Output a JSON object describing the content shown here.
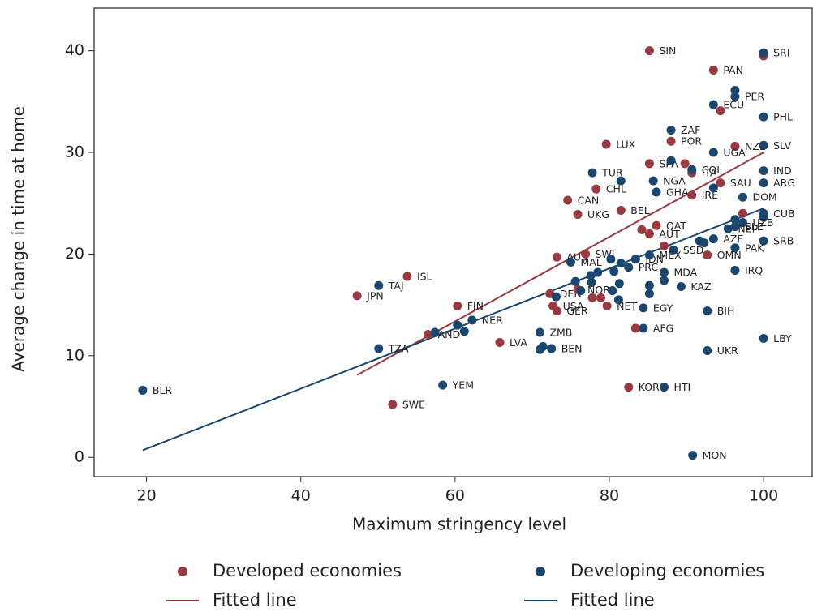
{
  "chart_data": {
    "type": "scatter",
    "xlabel": "Maximum stringency level",
    "ylabel": "Average change in time at home",
    "xlim": [
      13.2,
      106.3
    ],
    "ylim": [
      -1.9,
      44.2
    ],
    "xticks": [
      20,
      40,
      60,
      80,
      100
    ],
    "yticks": [
      0,
      10,
      20,
      30,
      40
    ],
    "series": [
      {
        "name": "Developed economies",
        "color": "#9a3a40",
        "x": [
          85.2,
          100,
          93.5,
          94.4,
          96.3,
          88.0,
          79.6,
          85.2,
          89.8,
          90.7,
          94.4,
          78.3,
          90.7,
          74.6,
          81.5,
          75.9,
          97.3,
          86.1,
          85.2,
          84.2,
          87.1,
          92.7,
          73.2,
          76.9,
          53.8,
          47.3,
          60.3,
          72.7,
          73.2,
          72.3,
          75.9,
          77.8,
          78.9,
          79.7,
          56.5,
          65.8,
          83.4,
          82.5,
          51.9
        ],
        "y": [
          40.0,
          39.5,
          38.1,
          34.1,
          30.6,
          31.1,
          30.8,
          28.9,
          28.9,
          28.0,
          27.0,
          26.4,
          25.8,
          25.3,
          24.3,
          23.9,
          24.0,
          22.8,
          22.0,
          22.4,
          20.8,
          19.9,
          19.7,
          20.0,
          17.8,
          15.9,
          14.9,
          14.9,
          14.4,
          16.1,
          16.5,
          15.7,
          15.7,
          14.9,
          12.1,
          11.3,
          12.7,
          6.9,
          5.2
        ],
        "labels": [
          "SIN",
          null,
          "PAN",
          null,
          "NZL",
          "POR",
          "LUX",
          "SPA",
          null,
          "ITA",
          "SAU",
          "CHL",
          "IRE",
          "CAN",
          "BEL",
          "UKG",
          null,
          "QAT",
          "AUT",
          null,
          null,
          "OMN",
          "AUS",
          "SWI",
          "ISL",
          "JPN",
          "FIN",
          "USA",
          "GER",
          "DEN",
          "NOR",
          null,
          null,
          "NET",
          "AND",
          "LVA",
          null,
          "KOR",
          "SWE"
        ],
        "fit": {
          "name": "Fitted line",
          "x": [
            47.3,
            100
          ],
          "y": [
            8.1,
            30.0
          ]
        }
      },
      {
        "name": "Developing economies",
        "color": "#1a4770",
        "x": [
          100,
          96.3,
          96.3,
          93.5,
          100,
          88.0,
          100,
          93.5,
          88.0,
          100,
          77.8,
          90.7,
          85.7,
          81.5,
          100,
          93.5,
          86.1,
          97.3,
          100,
          100,
          97.3,
          96.3,
          96.3,
          95.4,
          93.5,
          91.7,
          92.3,
          100,
          96.3,
          96.3,
          87.1,
          89.3,
          88.3,
          83.4,
          85.2,
          82.5,
          81.5,
          80.2,
          80.6,
          75.0,
          77.6,
          78.5,
          77.7,
          75.6,
          81.3,
          85.2,
          85.2,
          87.1,
          76.3,
          80.4,
          81.2,
          73.1,
          84.4,
          92.7,
          84.4,
          100,
          92.7,
          72.5,
          71.4,
          71.0,
          71.0,
          62.2,
          61.2,
          60.3,
          57.4,
          50.1,
          50.1,
          58.4,
          87.1,
          19.5,
          90.8
        ],
        "y": [
          39.8,
          36.1,
          35.5,
          34.7,
          33.5,
          32.2,
          30.7,
          30.0,
          29.2,
          28.2,
          28.0,
          28.3,
          27.2,
          27.2,
          27.0,
          26.5,
          26.1,
          25.6,
          24.0,
          23.6,
          23.1,
          23.4,
          22.7,
          22.5,
          21.5,
          21.3,
          21.1,
          21.3,
          20.6,
          18.4,
          18.2,
          16.8,
          20.4,
          19.5,
          19.9,
          18.7,
          19.1,
          19.5,
          18.3,
          19.2,
          17.9,
          18.2,
          17.2,
          17.3,
          17.1,
          16.9,
          16.1,
          17.4,
          16.4,
          16.4,
          15.5,
          15.8,
          14.7,
          14.4,
          12.7,
          11.7,
          10.5,
          10.7,
          10.9,
          10.6,
          12.3,
          13.5,
          12.4,
          13.0,
          12.3,
          10.7,
          16.9,
          7.1,
          6.9,
          6.6,
          0.2
        ],
        "labels": [
          "SRI",
          null,
          "PER",
          "ECU",
          "PHL",
          "ZAF",
          "SLV",
          "UGA",
          null,
          "IND",
          "TUR",
          "COL",
          "NGA",
          null,
          "ARG",
          null,
          "GHA",
          "DOM",
          "CUB",
          null,
          "UZB",
          null,
          "SLE",
          "NEP",
          "AZE",
          null,
          null,
          "SRB",
          "PAK",
          "IRQ",
          "MDA",
          "KAZ",
          "SSD",
          "IDN",
          "MEX",
          "PRC",
          null,
          null,
          null,
          "MAL",
          null,
          null,
          null,
          null,
          null,
          null,
          null,
          null,
          null,
          null,
          null,
          null,
          "EGY",
          "BIH",
          "AFG",
          "LBY",
          "UKR",
          "BEN",
          null,
          null,
          "ZMB",
          "NER",
          null,
          null,
          null,
          "TZA",
          "TAJ",
          "YEM",
          "HTI",
          "BLR",
          "MON"
        ],
        "fit": {
          "name": "Fitted line",
          "x": [
            19.5,
            100
          ],
          "y": [
            0.7,
            24.5
          ]
        }
      }
    ]
  }
}
